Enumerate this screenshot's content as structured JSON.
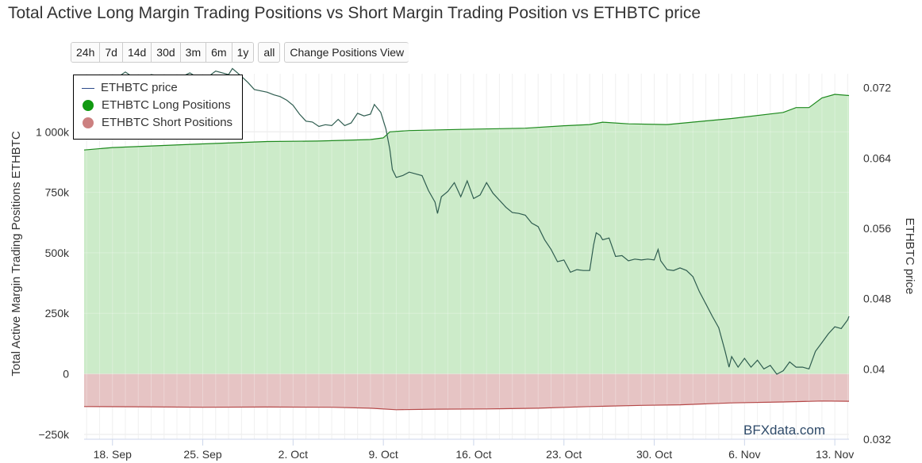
{
  "title": "Total Active Long Margin Trading Positions vs Short Margin Trading Position vs ETHBTC price",
  "range_buttons": [
    "24h",
    "7d",
    "14d",
    "30d",
    "3m",
    "6m",
    "1y"
  ],
  "all_button": "all",
  "change_view_button": "Change Positions View",
  "legend": {
    "price_label": "ETHBTC price",
    "long_label": "ETHBTC Long Positions",
    "short_label": "ETHBTC Short Positions"
  },
  "watermark": "BFXdata.com",
  "colors": {
    "price": "#2f5d50",
    "long_fill": "#c9eac6",
    "long_line": "#1e8a1e",
    "short_fill": "#e6c4c4",
    "short_line": "#b54848",
    "legend_price": "#2c4a8a",
    "legend_long": "#119911",
    "legend_short": "#cc8080"
  },
  "chart_data": {
    "type": "area",
    "title": "Total Active Long Margin Trading Positions vs Short Margin Trading Position vs ETHBTC price",
    "ylabel": "Total Active Margin Trading Positions ETHBTC",
    "y2label": "ETHBTC price",
    "x_ticks": [
      "18. Sep",
      "25. Sep",
      "2. Oct",
      "9. Oct",
      "16. Oct",
      "23. Oct",
      "30. Oct",
      "6. Nov",
      "13. Nov"
    ],
    "x_tick_days": [
      18,
      25,
      32,
      39,
      46,
      53,
      60,
      67,
      74
    ],
    "xlim_days": [
      15.8,
      75.1
    ],
    "y_ticks": [
      {
        "v": 1000000,
        "label": "1 000k"
      },
      {
        "v": 750000,
        "label": "750k"
      },
      {
        "v": 500000,
        "label": "500k"
      },
      {
        "v": 250000,
        "label": "250k"
      },
      {
        "v": 0,
        "label": "0"
      },
      {
        "v": -250000,
        "label": "−250k"
      }
    ],
    "ylim": [
      -270000,
      1240000
    ],
    "y2_ticks": [
      {
        "v": 0.072,
        "label": "0.072"
      },
      {
        "v": 0.064,
        "label": "0.064"
      },
      {
        "v": 0.056,
        "label": "0.056"
      },
      {
        "v": 0.048,
        "label": "0.048"
      },
      {
        "v": 0.04,
        "label": "0.04"
      },
      {
        "v": 0.032,
        "label": "0.032"
      }
    ],
    "y2lim": [
      0.032,
      0.0736
    ],
    "grid": true,
    "legend_position": "top-left",
    "series": [
      {
        "name": "ETHBTC Long Positions",
        "kind": "area",
        "points": [
          [
            15.8,
            925000
          ],
          [
            18,
            935000
          ],
          [
            25,
            950000
          ],
          [
            30,
            960000
          ],
          [
            34,
            962000
          ],
          [
            38,
            968000
          ],
          [
            39,
            975000
          ],
          [
            39.5,
            1000000
          ],
          [
            41,
            1005000
          ],
          [
            45,
            1010000
          ],
          [
            50,
            1015000
          ],
          [
            53,
            1025000
          ],
          [
            55,
            1030000
          ],
          [
            56,
            1040000
          ],
          [
            58,
            1033000
          ],
          [
            61,
            1030000
          ],
          [
            64,
            1045000
          ],
          [
            66,
            1055000
          ],
          [
            70,
            1080000
          ],
          [
            71,
            1100000
          ],
          [
            72,
            1100000
          ],
          [
            73,
            1140000
          ],
          [
            74,
            1155000
          ],
          [
            75.1,
            1150000
          ]
        ]
      },
      {
        "name": "ETHBTC Short Positions",
        "kind": "area",
        "points": [
          [
            15.8,
            -135000
          ],
          [
            20,
            -136000
          ],
          [
            25,
            -138000
          ],
          [
            30,
            -137000
          ],
          [
            35,
            -138000
          ],
          [
            38,
            -142000
          ],
          [
            40,
            -148000
          ],
          [
            43,
            -146000
          ],
          [
            47,
            -145000
          ],
          [
            51,
            -142000
          ],
          [
            55,
            -135000
          ],
          [
            59,
            -130000
          ],
          [
            62,
            -128000
          ],
          [
            66,
            -120000
          ],
          [
            70,
            -116000
          ],
          [
            73,
            -112000
          ],
          [
            75.1,
            -113000
          ]
        ]
      },
      {
        "name": "ETHBTC price",
        "kind": "line",
        "points": [
          [
            15.8,
            0.0683
          ],
          [
            16.2,
            0.0689
          ],
          [
            16.5,
            0.0687
          ],
          [
            17,
            0.068
          ],
          [
            17.5,
            0.068
          ],
          [
            18,
            0.0685
          ],
          [
            18.4,
            0.0732
          ],
          [
            19,
            0.0738
          ],
          [
            20,
            0.0728
          ],
          [
            21,
            0.0735
          ],
          [
            22,
            0.0733
          ],
          [
            23,
            0.073
          ],
          [
            24,
            0.0737
          ],
          [
            25,
            0.0728
          ],
          [
            26,
            0.0739
          ],
          [
            27,
            0.0735
          ],
          [
            27.3,
            0.0742
          ],
          [
            28,
            0.0733
          ],
          [
            28.5,
            0.0726
          ],
          [
            29,
            0.0718
          ],
          [
            30,
            0.0715
          ],
          [
            30.5,
            0.0712
          ],
          [
            31,
            0.071
          ],
          [
            31.5,
            0.0706
          ],
          [
            32,
            0.07
          ],
          [
            32.5,
            0.069
          ],
          [
            33,
            0.0682
          ],
          [
            33.5,
            0.0681
          ],
          [
            34,
            0.0676
          ],
          [
            34.5,
            0.0678
          ],
          [
            35,
            0.0677
          ],
          [
            35.5,
            0.0684
          ],
          [
            36,
            0.0677
          ],
          [
            36.5,
            0.068
          ],
          [
            37,
            0.0691
          ],
          [
            37.5,
            0.0688
          ],
          [
            38,
            0.069
          ],
          [
            38.3,
            0.0701
          ],
          [
            38.8,
            0.0692
          ],
          [
            39.2,
            0.0673
          ],
          [
            39.5,
            0.065
          ],
          [
            39.7,
            0.0627
          ],
          [
            40,
            0.0618
          ],
          [
            40.5,
            0.062
          ],
          [
            41,
            0.0624
          ],
          [
            41.5,
            0.0622
          ],
          [
            42,
            0.062
          ],
          [
            42.5,
            0.0603
          ],
          [
            43,
            0.059
          ],
          [
            43.2,
            0.0577
          ],
          [
            43.5,
            0.0596
          ],
          [
            44,
            0.0602
          ],
          [
            44.5,
            0.0612
          ],
          [
            45,
            0.0596
          ],
          [
            45.5,
            0.0614
          ],
          [
            46,
            0.0594
          ],
          [
            46.5,
            0.0598
          ],
          [
            47,
            0.0612
          ],
          [
            47.5,
            0.06
          ],
          [
            48,
            0.0592
          ],
          [
            48.5,
            0.0584
          ],
          [
            49,
            0.0578
          ],
          [
            49.5,
            0.0577
          ],
          [
            50,
            0.0575
          ],
          [
            50.5,
            0.0566
          ],
          [
            51,
            0.0562
          ],
          [
            51.5,
            0.0547
          ],
          [
            52,
            0.0536
          ],
          [
            52.5,
            0.0522
          ],
          [
            53,
            0.0524
          ],
          [
            53.5,
            0.051
          ],
          [
            54,
            0.0513
          ],
          [
            54.5,
            0.0512
          ],
          [
            55,
            0.0512
          ],
          [
            55.3,
            0.0541
          ],
          [
            55.5,
            0.0555
          ],
          [
            55.8,
            0.0552
          ],
          [
            56,
            0.0547
          ],
          [
            56.5,
            0.0549
          ],
          [
            57,
            0.0528
          ],
          [
            57.5,
            0.0529
          ],
          [
            58,
            0.0523
          ],
          [
            58.5,
            0.0525
          ],
          [
            59,
            0.0524
          ],
          [
            59.5,
            0.0525
          ],
          [
            60,
            0.0524
          ],
          [
            60.3,
            0.0536
          ],
          [
            60.5,
            0.0523
          ],
          [
            61,
            0.0513
          ],
          [
            61.5,
            0.0512
          ],
          [
            62,
            0.0515
          ],
          [
            62.5,
            0.0512
          ],
          [
            63,
            0.0505
          ],
          [
            63.5,
            0.0488
          ],
          [
            64,
            0.0474
          ],
          [
            64.5,
            0.046
          ],
          [
            65,
            0.0447
          ],
          [
            65.5,
            0.042
          ],
          [
            65.8,
            0.0402
          ],
          [
            66,
            0.0414
          ],
          [
            66.5,
            0.0402
          ],
          [
            67,
            0.0412
          ],
          [
            67.5,
            0.0402
          ],
          [
            68,
            0.041
          ],
          [
            68.5,
            0.04
          ],
          [
            69,
            0.0404
          ],
          [
            69.5,
            0.0394
          ],
          [
            70,
            0.0398
          ],
          [
            70.5,
            0.0408
          ],
          [
            71,
            0.0402
          ],
          [
            71.5,
            0.0402
          ],
          [
            72,
            0.04
          ],
          [
            72.5,
            0.042
          ],
          [
            73,
            0.043
          ],
          [
            73.5,
            0.044
          ],
          [
            74,
            0.0448
          ],
          [
            74.5,
            0.0446
          ],
          [
            75,
            0.0456
          ],
          [
            75.1,
            0.046
          ]
        ]
      }
    ]
  }
}
